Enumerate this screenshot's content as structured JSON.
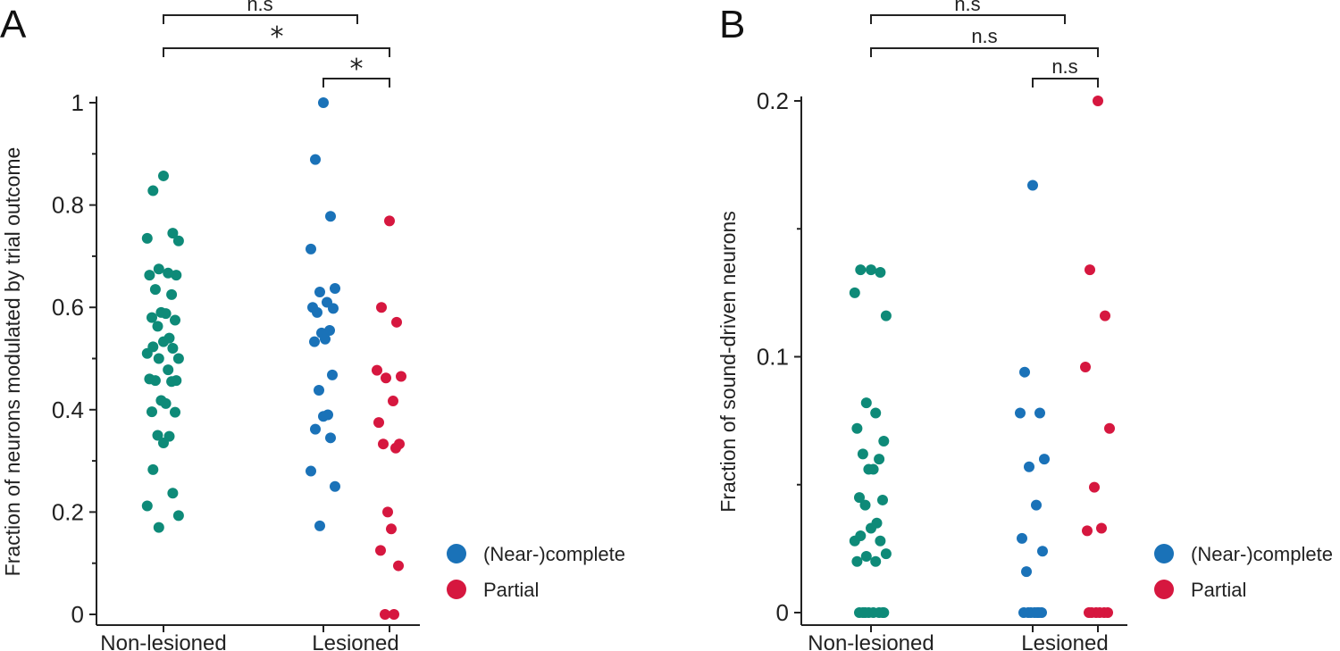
{
  "colors": {
    "non_lesioned": "#0e8a78",
    "complete": "#1a72b8",
    "partial": "#d6173f",
    "axis": "#222222"
  },
  "chart_data": [
    {
      "type": "scatter",
      "panel_label": "A",
      "ylabel": "Fraction of neurons modulated by trial outcome",
      "ylim": [
        0,
        1
      ],
      "yticks": [
        "0",
        "0.2",
        "0.4",
        "0.6",
        "0.8",
        "1"
      ],
      "categories": [
        "Non-lesioned",
        "Lesioned"
      ],
      "legend": [
        "(Near-)complete",
        "Partial"
      ],
      "comparisons": [
        {
          "from": "Non-lesioned",
          "to": "Lesioned (Near-)complete",
          "label": "n.s"
        },
        {
          "from": "Non-lesioned",
          "to": "Lesioned Partial",
          "label": "*"
        },
        {
          "from": "Lesioned (Near-)complete",
          "to": "Lesioned Partial",
          "label": "*"
        }
      ],
      "series": [
        {
          "name": "Non-lesioned",
          "color_key": "non_lesioned",
          "values": [
            0.857,
            0.828,
            0.745,
            0.735,
            0.73,
            0.675,
            0.667,
            0.663,
            0.663,
            0.635,
            0.625,
            0.59,
            0.588,
            0.58,
            0.575,
            0.563,
            0.54,
            0.533,
            0.523,
            0.52,
            0.51,
            0.5,
            0.5,
            0.478,
            0.46,
            0.457,
            0.457,
            0.455,
            0.418,
            0.412,
            0.396,
            0.395,
            0.35,
            0.348,
            0.335,
            0.283,
            0.237,
            0.212,
            0.193,
            0.17
          ]
        },
        {
          "name": "(Near-)complete",
          "color_key": "complete",
          "values": [
            1.0,
            0.889,
            0.778,
            0.714,
            0.637,
            0.63,
            0.61,
            0.6,
            0.598,
            0.59,
            0.555,
            0.55,
            0.538,
            0.533,
            0.468,
            0.438,
            0.39,
            0.387,
            0.362,
            0.345,
            0.28,
            0.25,
            0.173
          ]
        },
        {
          "name": "Partial",
          "color_key": "partial",
          "values": [
            0.769,
            0.6,
            0.571,
            0.477,
            0.465,
            0.462,
            0.417,
            0.375,
            0.333,
            0.333,
            0.325,
            0.2,
            0.167,
            0.125,
            0.095,
            0.0,
            0.0
          ]
        }
      ]
    },
    {
      "type": "scatter",
      "panel_label": "B",
      "ylabel": "Fraction of sound-driven neurons",
      "ylim": [
        0,
        0.2
      ],
      "yticks": [
        "0",
        "0.1",
        "0.2"
      ],
      "categories": [
        "Non-lesioned",
        "Lesioned"
      ],
      "legend": [
        "(Near-)complete",
        "Partial"
      ],
      "comparisons": [
        {
          "from": "Non-lesioned",
          "to": "Lesioned (Near-)complete",
          "label": "n.s"
        },
        {
          "from": "Non-lesioned",
          "to": "Lesioned Partial",
          "label": "n.s"
        },
        {
          "from": "Lesioned (Near-)complete",
          "to": "Lesioned Partial",
          "label": "n.s"
        }
      ],
      "series": [
        {
          "name": "Non-lesioned",
          "color_key": "non_lesioned",
          "values": [
            0.134,
            0.134,
            0.133,
            0.125,
            0.116,
            0.082,
            0.078,
            0.072,
            0.067,
            0.062,
            0.06,
            0.056,
            0.056,
            0.045,
            0.044,
            0.042,
            0.035,
            0.033,
            0.03,
            0.028,
            0.028,
            0.023,
            0.022,
            0.02,
            0.02,
            0.0,
            0.0,
            0.0,
            0.0,
            0.0,
            0.0,
            0.0,
            0.0
          ]
        },
        {
          "name": "(Near-)complete",
          "color_key": "complete",
          "values": [
            0.167,
            0.094,
            0.078,
            0.078,
            0.06,
            0.057,
            0.042,
            0.029,
            0.024,
            0.016,
            0.0,
            0.0,
            0.0,
            0.0,
            0.0,
            0.0,
            0.0
          ]
        },
        {
          "name": "Partial",
          "color_key": "partial",
          "values": [
            0.2,
            0.134,
            0.116,
            0.096,
            0.072,
            0.049,
            0.033,
            0.032,
            0.0,
            0.0,
            0.0,
            0.0,
            0.0,
            0.0
          ]
        }
      ]
    }
  ]
}
